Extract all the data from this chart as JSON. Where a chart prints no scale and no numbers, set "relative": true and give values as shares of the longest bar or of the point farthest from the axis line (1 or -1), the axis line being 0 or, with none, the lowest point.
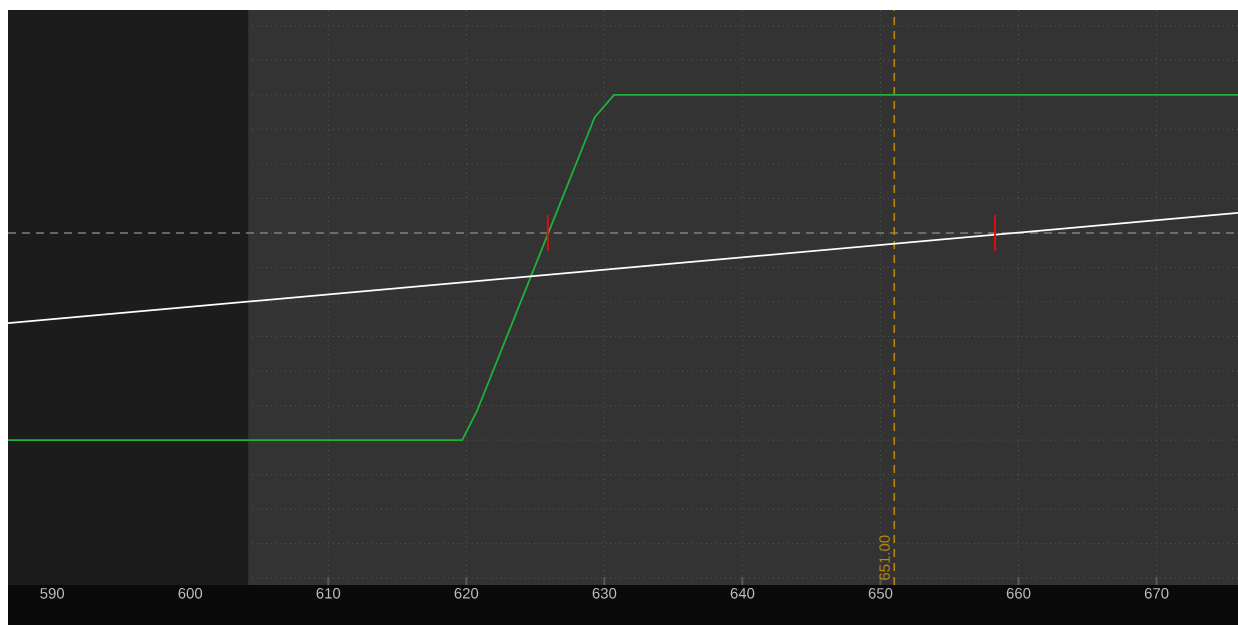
{
  "chart_data": {
    "type": "line",
    "relative": true,
    "xlim": [
      586.8,
      675.9
    ],
    "xticks": [
      590,
      600,
      610,
      620,
      630,
      640,
      650,
      660,
      670
    ],
    "grid": true,
    "tick_labels": "x",
    "series": [
      {
        "color": "#1db33a",
        "x": [
          586.8,
          619.7,
          620.8,
          629.3,
          630.7,
          675.9
        ],
        "values": [
          -1,
          -1,
          -0.855,
          0.559,
          0.667,
          0.667
        ]
      },
      {
        "color": "#ffffff",
        "x": [
          586.8,
          675.9
        ],
        "values": [
          -0.435,
          0.097
        ]
      },
      {
        "color": "#ff0000",
        "x": [
          625.9,
          625.9
        ],
        "values": [
          -0.087,
          0.087
        ]
      },
      {
        "color": "#ff0000",
        "x": [
          658.3,
          658.3
        ],
        "values": [
          -0.087,
          0.087
        ]
      }
    ],
    "ref_lines": [
      {
        "axis": "y",
        "value": 0,
        "color": "#808080",
        "line_style": "dashed"
      },
      {
        "axis": "x",
        "value": 651,
        "label": "651.00",
        "color": "#b8860b",
        "line_style": "dashed"
      }
    ],
    "bands": [
      {
        "axis": "x",
        "from": 586.8,
        "to": 604.2,
        "color": "#1c1c1c"
      }
    ]
  }
}
